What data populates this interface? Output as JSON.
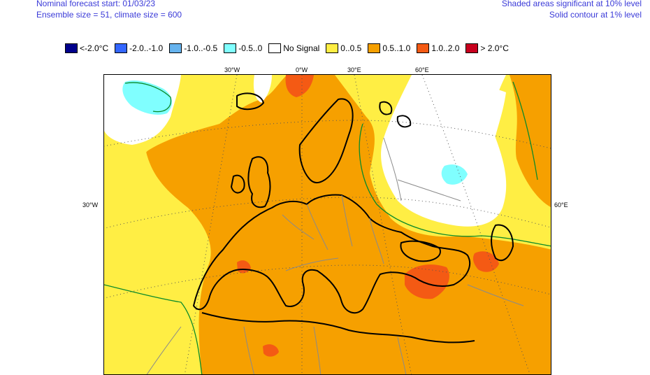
{
  "header": {
    "forecast_start": "Nominal forecast start: 01/03/23",
    "ensemble": "Ensemble size = 51, climate size = 600",
    "shaded_note": "Shaded areas significant at 10% level",
    "contour_note": "Solid contour at 1% level"
  },
  "legend": [
    {
      "label": "<-2.0°C",
      "color": "#00008b"
    },
    {
      "label": "-2.0..-1.0",
      "color": "#3366ff"
    },
    {
      "label": "-1.0..-0.5",
      "color": "#66b3ee"
    },
    {
      "label": "-0.5..0",
      "color": "#80ffff"
    },
    {
      "label": "No Signal",
      "color": "#ffffff"
    },
    {
      "label": "0..0.5",
      "color": "#ffee44"
    },
    {
      "label": "0.5..1.0",
      "color": "#f6a000"
    },
    {
      "label": "1.0..2.0",
      "color": "#f45a14"
    },
    {
      "label": "> 2.0°C",
      "color": "#c8001e"
    }
  ],
  "grid_labels": {
    "lon_top": [
      "30°W",
      "0°W",
      "30°E",
      "60°E"
    ],
    "lat_left": "30°W",
    "lat_right": "60°E"
  }
}
